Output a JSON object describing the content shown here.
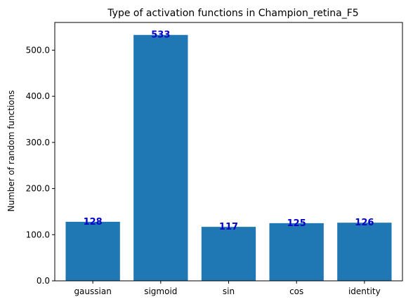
{
  "chart_data": {
    "type": "bar",
    "title": "Type of activation functions in Champion_retina_F5",
    "xlabel": "",
    "ylabel": "Number of random functions",
    "categories": [
      "gaussian",
      "sigmoid",
      "sin",
      "cos",
      "identity"
    ],
    "values": [
      128,
      533,
      117,
      125,
      126
    ],
    "value_labels": [
      "128",
      "533",
      "117",
      "125",
      "126"
    ],
    "ylim": [
      0,
      560
    ],
    "yticks": [
      0,
      100,
      200,
      300,
      400,
      500
    ],
    "ytick_labels": [
      "0.0",
      "100.0",
      "200.0",
      "300.0",
      "400.0",
      "500.0"
    ],
    "bar_color": "#1f77b4",
    "label_color": "#0000cc",
    "grid": false,
    "legend": "none"
  }
}
